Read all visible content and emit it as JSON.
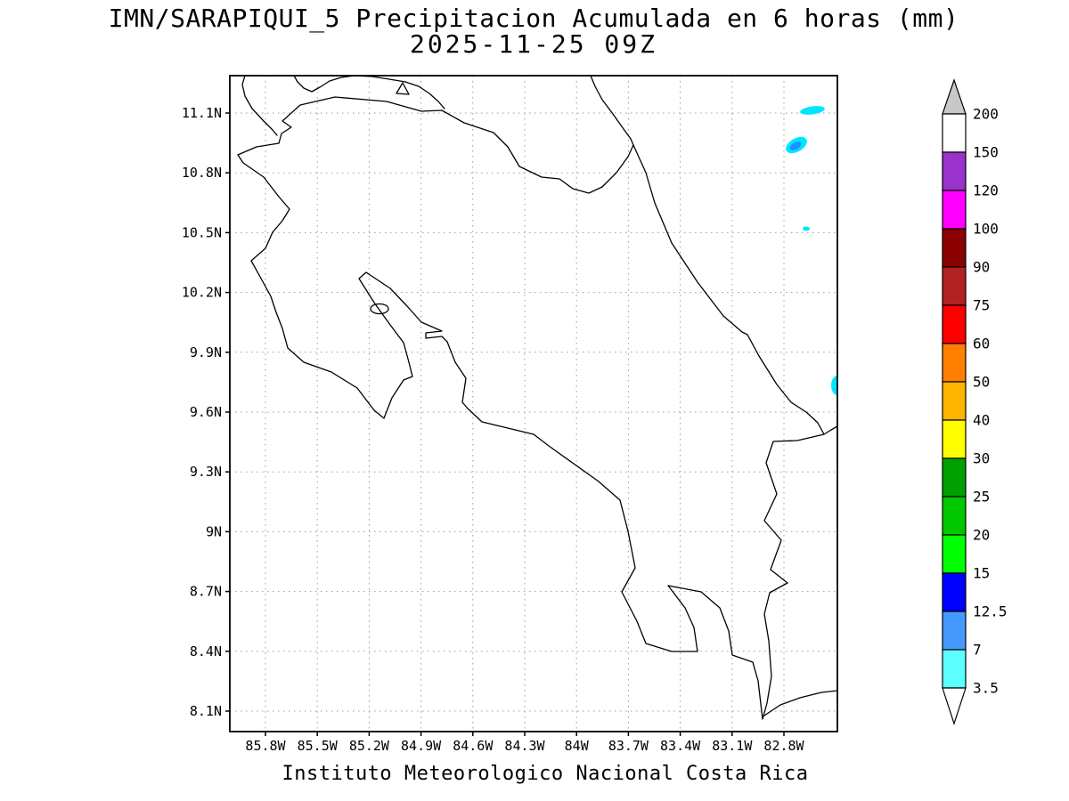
{
  "title": {
    "line1": "IMN/SARAPIQUI_5 Precipitacion Acumulada en 6 horas (mm)",
    "line2": "2025-11-25 09Z"
  },
  "caption": "Instituto Meteorologico Nacional Costa Rica",
  "map": {
    "lat_ticks": [
      "11.1N",
      "10.8N",
      "10.5N",
      "10.2N",
      "9.9N",
      "9.6N",
      "9.3N",
      "9N",
      "8.7N",
      "8.4N",
      "8.1N"
    ],
    "lon_ticks": [
      "85.8W",
      "85.5W",
      "85.2W",
      "84.9W",
      "84.6W",
      "84.3W",
      "84W",
      "83.7W",
      "83.4W",
      "83.1W",
      "82.8W"
    ],
    "grid": "dotted",
    "region": "Costa Rica"
  },
  "colorbar": {
    "units": "mm",
    "tick_labels": [
      "200",
      "150",
      "120",
      "100",
      "90",
      "75",
      "60",
      "50",
      "40",
      "30",
      "25",
      "20",
      "15",
      "12.5",
      "7",
      "3.5"
    ],
    "segment_colors": [
      "#FFFFFF",
      "#9933CC",
      "#FF00FF",
      "#8B0000",
      "#B22222",
      "#FF0000",
      "#FF8000",
      "#FFB400",
      "#FFFF00",
      "#00A000",
      "#00C800",
      "#00FF00",
      "#0000FF",
      "#4699FF",
      "#5CFFFF"
    ],
    "above_max_color": "#C8C8C8",
    "below_min_color": "#FFFFFF"
  },
  "precip_colors": {
    "light": "#00E5FF",
    "moderate": "#1E90FF"
  },
  "chart_data": {
    "type": "heatmap",
    "subtype": "geographic-precipitation-map",
    "title": "IMN/SARAPIQUI_5 Precipitacion Acumulada en 6 horas (mm)",
    "valid_time": "2025-11-25 09Z",
    "units": "mm",
    "accumulation_hours": 6,
    "xlabel_ticks_lon_w": [
      85.8,
      85.5,
      85.2,
      84.9,
      84.6,
      84.3,
      84.0,
      83.7,
      83.4,
      83.1,
      82.8
    ],
    "ylabel_ticks_lat_n": [
      11.1,
      10.8,
      10.5,
      10.2,
      9.9,
      9.6,
      9.3,
      9.0,
      8.7,
      8.4,
      8.1
    ],
    "levels_mm": [
      3.5,
      7,
      12.5,
      15,
      20,
      25,
      30,
      40,
      50,
      60,
      75,
      90,
      100,
      120,
      150,
      200
    ],
    "legend_position": "right",
    "grid": true,
    "precipitation_features": [
      {
        "approx_lon_w": 82.63,
        "approx_lat_n": 11.11,
        "value_mm": "3.5-7"
      },
      {
        "approx_lon_w": 82.73,
        "approx_lat_n": 10.94,
        "value_mm": "7-12.5 core, 3.5-7 rim"
      },
      {
        "approx_lon_w": 82.67,
        "approx_lat_n": 10.52,
        "value_mm": "3.5-7"
      },
      {
        "approx_lon_w": 82.49,
        "approx_lat_n": 9.73,
        "value_mm": "3.5-7"
      }
    ]
  }
}
